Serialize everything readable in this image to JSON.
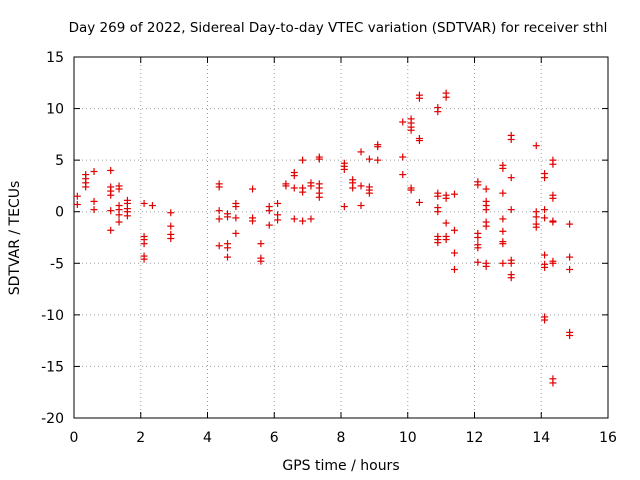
{
  "chart_data": {
    "type": "scatter",
    "title": "Day 269 of 2022, Sidereal Day-to-day VTEC variation (SDTVAR) for receiver sthl",
    "xlabel": "GPS time / hours",
    "ylabel": "SDTVAR / TECUs",
    "xlim": [
      0,
      16
    ],
    "ylim": [
      -20,
      15
    ],
    "xticks": [
      0,
      2,
      4,
      6,
      8,
      10,
      12,
      14,
      16
    ],
    "yticks": [
      -20,
      -15,
      -10,
      -5,
      0,
      5,
      10,
      15
    ],
    "grid": true,
    "marker": "plus",
    "color": "#e00000",
    "series": [
      {
        "name": "SDTVAR",
        "points": [
          [
            0.1,
            1.5
          ],
          [
            0.1,
            0.7
          ],
          [
            0.35,
            3.6
          ],
          [
            0.35,
            3.2
          ],
          [
            0.35,
            2.8
          ],
          [
            0.35,
            2.4
          ],
          [
            0.6,
            3.9
          ],
          [
            0.6,
            1.0
          ],
          [
            0.6,
            0.2
          ],
          [
            1.1,
            4.0
          ],
          [
            1.1,
            2.4
          ],
          [
            1.1,
            2.0
          ],
          [
            1.1,
            1.6
          ],
          [
            1.1,
            0.1
          ],
          [
            1.1,
            -1.8
          ],
          [
            1.35,
            2.5
          ],
          [
            1.35,
            2.2
          ],
          [
            1.35,
            0.6
          ],
          [
            1.35,
            0.2
          ],
          [
            1.35,
            -0.3
          ],
          [
            1.35,
            -1.0
          ],
          [
            1.6,
            1.1
          ],
          [
            1.6,
            0.8
          ],
          [
            1.6,
            0.3
          ],
          [
            1.6,
            0.0
          ],
          [
            1.6,
            -0.4
          ],
          [
            2.1,
            0.8
          ],
          [
            2.1,
            -2.4
          ],
          [
            2.1,
            -2.7
          ],
          [
            2.1,
            -3.1
          ],
          [
            2.1,
            -4.3
          ],
          [
            2.1,
            -4.6
          ],
          [
            2.35,
            0.6
          ],
          [
            2.9,
            -0.1
          ],
          [
            2.9,
            -1.4
          ],
          [
            2.9,
            -2.2
          ],
          [
            2.9,
            -2.6
          ],
          [
            4.35,
            2.7
          ],
          [
            4.35,
            2.4
          ],
          [
            4.35,
            0.1
          ],
          [
            4.35,
            -0.7
          ],
          [
            4.35,
            -3.3
          ],
          [
            4.6,
            -0.2
          ],
          [
            4.6,
            -0.5
          ],
          [
            4.6,
            -3.1
          ],
          [
            4.6,
            -3.5
          ],
          [
            4.6,
            -4.4
          ],
          [
            4.85,
            0.8
          ],
          [
            4.85,
            0.5
          ],
          [
            4.85,
            -0.6
          ],
          [
            4.85,
            -2.1
          ],
          [
            5.35,
            2.2
          ],
          [
            5.35,
            -0.6
          ],
          [
            5.35,
            -0.9
          ],
          [
            5.6,
            -3.1
          ],
          [
            5.6,
            -4.5
          ],
          [
            5.6,
            -4.8
          ],
          [
            5.85,
            0.5
          ],
          [
            5.85,
            0.1
          ],
          [
            5.85,
            -1.3
          ],
          [
            6.1,
            0.8
          ],
          [
            6.1,
            -0.3
          ],
          [
            6.1,
            -0.8
          ],
          [
            6.35,
            2.7
          ],
          [
            6.35,
            2.5
          ],
          [
            6.6,
            3.8
          ],
          [
            6.6,
            3.5
          ],
          [
            6.6,
            2.3
          ],
          [
            6.6,
            -0.7
          ],
          [
            6.85,
            5.0
          ],
          [
            6.85,
            2.3
          ],
          [
            6.85,
            1.9
          ],
          [
            6.85,
            -0.9
          ],
          [
            7.1,
            2.8
          ],
          [
            7.1,
            2.5
          ],
          [
            7.1,
            -0.7
          ],
          [
            7.35,
            5.3
          ],
          [
            7.35,
            5.1
          ],
          [
            7.35,
            2.7
          ],
          [
            7.35,
            2.3
          ],
          [
            7.35,
            1.8
          ],
          [
            7.35,
            1.4
          ],
          [
            8.1,
            4.7
          ],
          [
            8.1,
            4.4
          ],
          [
            8.1,
            4.1
          ],
          [
            8.1,
            0.5
          ],
          [
            8.35,
            3.1
          ],
          [
            8.35,
            2.8
          ],
          [
            8.35,
            2.3
          ],
          [
            8.6,
            5.8
          ],
          [
            8.6,
            2.5
          ],
          [
            8.6,
            0.6
          ],
          [
            8.85,
            5.1
          ],
          [
            8.85,
            2.4
          ],
          [
            8.85,
            2.1
          ],
          [
            8.85,
            1.8
          ],
          [
            9.1,
            6.5
          ],
          [
            9.1,
            6.3
          ],
          [
            9.1,
            5.0
          ],
          [
            9.85,
            8.7
          ],
          [
            9.85,
            5.3
          ],
          [
            9.85,
            3.6
          ],
          [
            10.1,
            9.0
          ],
          [
            10.1,
            8.6
          ],
          [
            10.1,
            8.2
          ],
          [
            10.1,
            7.9
          ],
          [
            10.1,
            2.3
          ],
          [
            10.1,
            2.1
          ],
          [
            10.35,
            11.3
          ],
          [
            10.35,
            11.0
          ],
          [
            10.35,
            7.1
          ],
          [
            10.35,
            6.9
          ],
          [
            10.35,
            0.9
          ],
          [
            10.9,
            10.1
          ],
          [
            10.9,
            9.7
          ],
          [
            10.9,
            1.8
          ],
          [
            10.9,
            1.5
          ],
          [
            10.9,
            0.4
          ],
          [
            10.9,
            0.0
          ],
          [
            10.9,
            -2.4
          ],
          [
            10.9,
            -2.7
          ],
          [
            10.9,
            -3.0
          ],
          [
            11.15,
            11.5
          ],
          [
            11.15,
            11.1
          ],
          [
            11.15,
            1.6
          ],
          [
            11.15,
            1.3
          ],
          [
            11.15,
            -1.1
          ],
          [
            11.15,
            -2.4
          ],
          [
            11.15,
            -2.7
          ],
          [
            11.4,
            1.7
          ],
          [
            11.4,
            -1.8
          ],
          [
            11.4,
            -4.0
          ],
          [
            11.4,
            -5.6
          ],
          [
            12.1,
            2.9
          ],
          [
            12.1,
            2.6
          ],
          [
            12.1,
            -2.1
          ],
          [
            12.1,
            -2.5
          ],
          [
            12.1,
            -3.2
          ],
          [
            12.1,
            -3.5
          ],
          [
            12.1,
            -4.9
          ],
          [
            12.35,
            2.2
          ],
          [
            12.35,
            1.0
          ],
          [
            12.35,
            0.6
          ],
          [
            12.35,
            0.2
          ],
          [
            12.35,
            -1.0
          ],
          [
            12.35,
            -1.4
          ],
          [
            12.35,
            -5.0
          ],
          [
            12.35,
            -5.3
          ],
          [
            12.85,
            4.5
          ],
          [
            12.85,
            4.2
          ],
          [
            12.85,
            1.8
          ],
          [
            12.85,
            -0.7
          ],
          [
            12.85,
            -1.9
          ],
          [
            12.85,
            -2.9
          ],
          [
            12.85,
            -3.1
          ],
          [
            12.85,
            -5.0
          ],
          [
            13.1,
            7.4
          ],
          [
            13.1,
            7.0
          ],
          [
            13.1,
            3.3
          ],
          [
            13.1,
            0.2
          ],
          [
            13.1,
            -4.7
          ],
          [
            13.1,
            -5.0
          ],
          [
            13.1,
            -6.1
          ],
          [
            13.1,
            -6.4
          ],
          [
            13.85,
            6.4
          ],
          [
            13.85,
            0.0
          ],
          [
            13.85,
            -0.5
          ],
          [
            13.85,
            -1.2
          ],
          [
            13.85,
            -1.5
          ],
          [
            14.1,
            3.7
          ],
          [
            14.1,
            3.3
          ],
          [
            14.1,
            0.2
          ],
          [
            14.1,
            -0.6
          ],
          [
            14.1,
            -4.2
          ],
          [
            14.1,
            -5.1
          ],
          [
            14.1,
            -5.4
          ],
          [
            14.1,
            -10.2
          ],
          [
            14.1,
            -10.5
          ],
          [
            14.35,
            5.0
          ],
          [
            14.35,
            4.6
          ],
          [
            14.35,
            1.6
          ],
          [
            14.35,
            1.3
          ],
          [
            14.35,
            -0.9
          ],
          [
            14.35,
            -1.0
          ],
          [
            14.35,
            -4.8
          ],
          [
            14.35,
            -5.0
          ],
          [
            14.35,
            -16.2
          ],
          [
            14.35,
            -16.6
          ],
          [
            14.85,
            -1.2
          ],
          [
            14.85,
            -4.4
          ],
          [
            14.85,
            -5.6
          ],
          [
            14.85,
            -11.7
          ],
          [
            14.85,
            -12.0
          ]
        ]
      }
    ]
  }
}
